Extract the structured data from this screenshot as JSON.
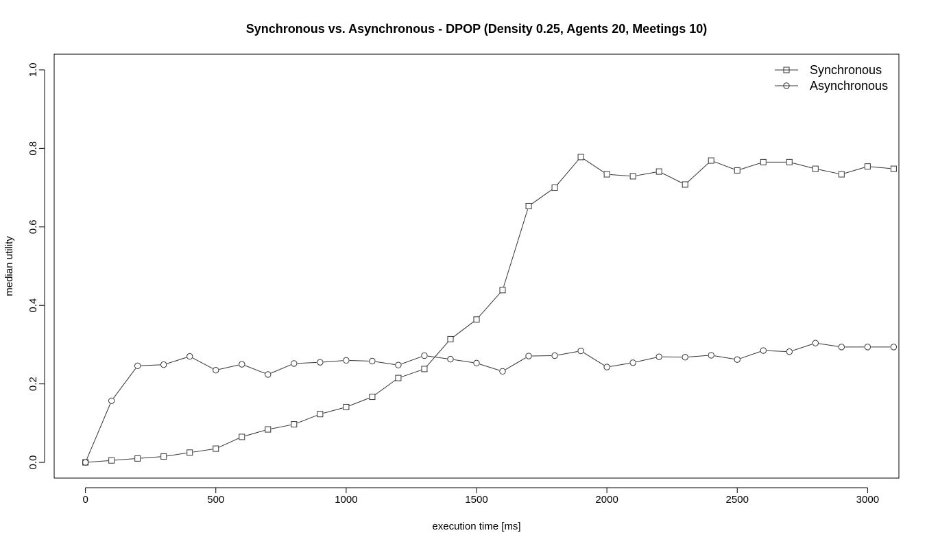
{
  "chart_data": {
    "type": "line",
    "title": "Synchronous vs. Asynchronous - DPOP (Density 0.25, Agents 20, Meetings 10)",
    "xlabel": "execution time [ms]",
    "ylabel": "median utility",
    "xlim": [
      -120,
      3120
    ],
    "ylim": [
      -0.04,
      1.04
    ],
    "x_ticks": [
      0,
      500,
      1000,
      1500,
      2000,
      2500,
      3000
    ],
    "x_tick_labels": [
      "0",
      "500",
      "1000",
      "1500",
      "2000",
      "2500",
      "3000"
    ],
    "y_ticks": [
      0.0,
      0.2,
      0.4,
      0.6,
      0.8,
      1.0
    ],
    "y_tick_labels": [
      "0.0",
      "0.2",
      "0.4",
      "0.6",
      "0.8",
      "1.0"
    ],
    "legend_position": "top-right",
    "x": [
      0,
      100,
      200,
      300,
      400,
      500,
      600,
      700,
      800,
      900,
      1000,
      1100,
      1200,
      1300,
      1400,
      1500,
      1600,
      1700,
      1800,
      1900,
      2000,
      2100,
      2200,
      2300,
      2400,
      2500,
      2600,
      2700,
      2800,
      2900,
      3000,
      3100
    ],
    "series": [
      {
        "name": "Synchronous",
        "marker": "square",
        "values": [
          0.0,
          0.005,
          0.01,
          0.015,
          0.025,
          0.035,
          0.065,
          0.084,
          0.097,
          0.123,
          0.141,
          0.167,
          0.215,
          0.238,
          0.314,
          0.364,
          0.439,
          0.653,
          0.7,
          0.778,
          0.734,
          0.729,
          0.741,
          0.708,
          0.769,
          0.744,
          0.765,
          0.765,
          0.748,
          0.734,
          0.754,
          0.748
        ]
      },
      {
        "name": "Asynchronous",
        "marker": "circle",
        "values": [
          0.0,
          0.157,
          0.246,
          0.249,
          0.27,
          0.235,
          0.25,
          0.224,
          0.252,
          0.255,
          0.26,
          0.258,
          0.248,
          0.272,
          0.263,
          0.253,
          0.232,
          0.271,
          0.272,
          0.284,
          0.243,
          0.254,
          0.269,
          0.268,
          0.273,
          0.262,
          0.285,
          0.282,
          0.304,
          0.294,
          0.294,
          0.294
        ]
      }
    ]
  }
}
